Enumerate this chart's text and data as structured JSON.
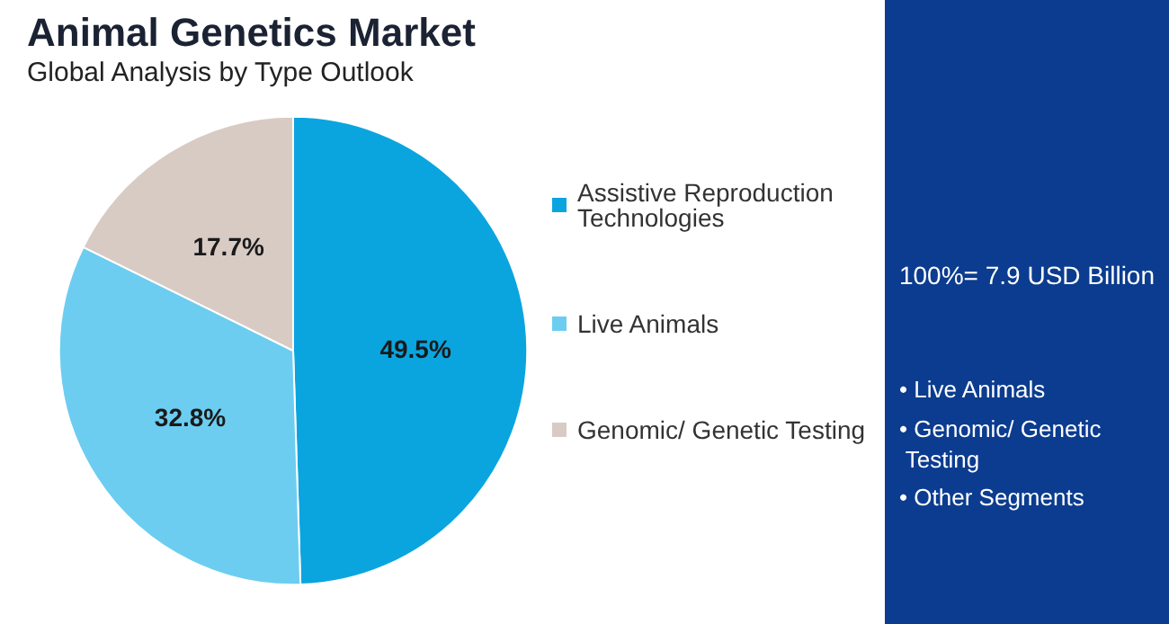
{
  "chart_data": {
    "type": "pie",
    "title": "Animal Genetics Market",
    "subtitle": "Global Analysis by Type Outlook",
    "categories": [
      "Assistive Reproduction Technologies",
      "Live Animals",
      "Genomic/ Genetic Testing"
    ],
    "values": [
      49.5,
      32.8,
      17.7
    ],
    "colors": [
      "#0aa5df",
      "#6ccdf0",
      "#d8cbc4"
    ],
    "value_labels": [
      "49.5%",
      "32.8%",
      "17.7%"
    ],
    "legend": "right",
    "annotations": [
      "100%= 7.9 USD Billion",
      "• Live Animals",
      "• Genomic/ Genetic Testing",
      "• Other Segments"
    ]
  }
}
